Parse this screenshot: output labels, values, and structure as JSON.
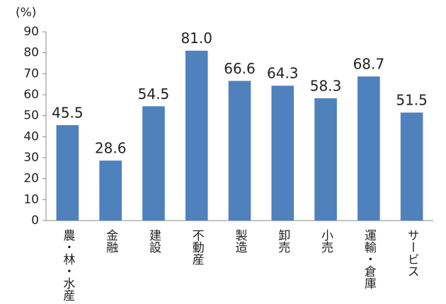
{
  "chart_data": {
    "type": "bar",
    "y_label": "(%)",
    "categories": [
      "農・林・水産",
      "金融",
      "建設",
      "不動産",
      "製造",
      "卸売",
      "小売",
      "運輸・倉庫",
      "サービス"
    ],
    "values": [
      45.5,
      28.6,
      54.5,
      81.0,
      66.6,
      64.3,
      58.3,
      68.7,
      51.5
    ],
    "value_labels": [
      "45.5",
      "28.6",
      "54.5",
      "81.0",
      "66.6",
      "64.3",
      "58.3",
      "68.7",
      "51.5"
    ],
    "color": "#4f81bd",
    "ylim": [
      0,
      90
    ],
    "yticks": [
      0,
      10,
      20,
      30,
      40,
      50,
      60,
      70,
      80,
      90
    ]
  }
}
